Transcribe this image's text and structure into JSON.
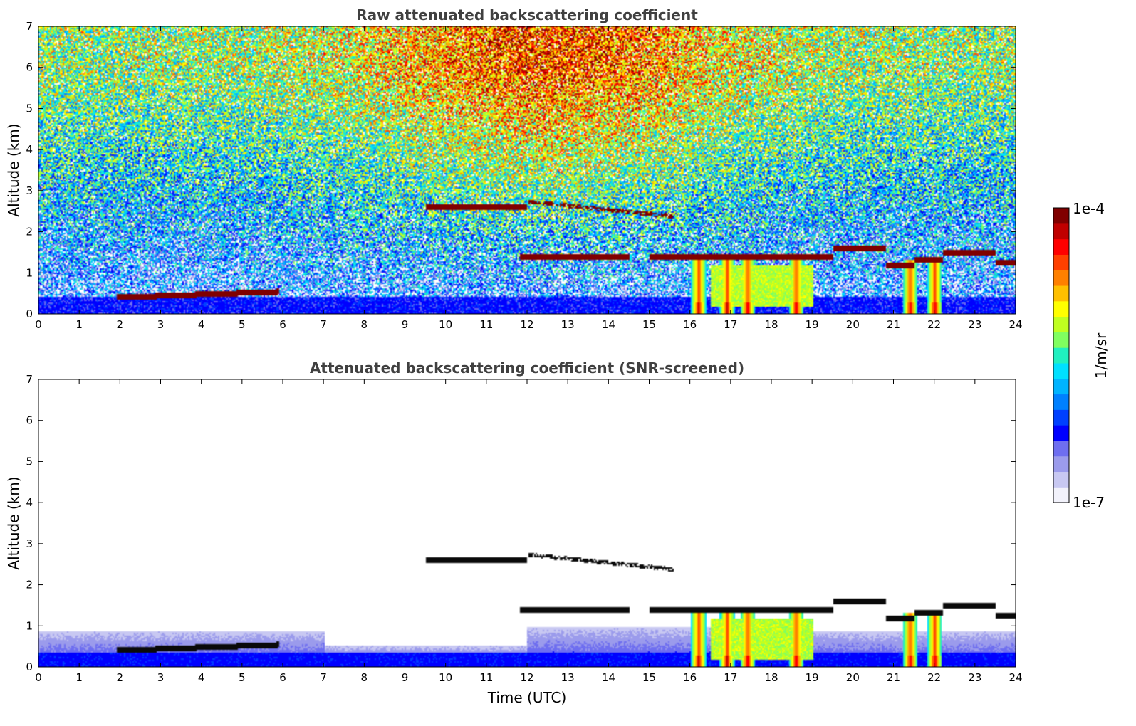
{
  "chart_data": [
    {
      "type": "heatmap",
      "title": "Raw attenuated backscattering coefficient",
      "xlabel": "",
      "ylabel": "Altitude (km)",
      "xlim": [
        0,
        24
      ],
      "ylim": [
        0,
        7
      ],
      "xticks": [
        "0",
        "1",
        "2",
        "3",
        "4",
        "5",
        "6",
        "7",
        "8",
        "9",
        "10",
        "11",
        "12",
        "13",
        "14",
        "15",
        "16",
        "17",
        "18",
        "19",
        "20",
        "21",
        "22",
        "23",
        "24"
      ],
      "yticks": [
        "0",
        "1",
        "2",
        "3",
        "4",
        "5",
        "6",
        "7"
      ],
      "features": {
        "surface_layer_top_km": 0.45,
        "low_cloud": {
          "x": [
            1.9,
            5.9
          ],
          "alt_km": [
            0.35,
            0.6
          ]
        },
        "mid_cloud": {
          "x": [
            9.5,
            15.5
          ],
          "alt_km": [
            2.4,
            2.7
          ]
        },
        "upper_pbl_cloud": {
          "x": [
            11.8,
            24
          ],
          "alt_km": [
            1.1,
            1.6
          ]
        },
        "precipitation_shafts_x": [
          16.2,
          16.9,
          17.4,
          18.6,
          21.4,
          22.0
        ]
      }
    },
    {
      "type": "heatmap",
      "title": "Attenuated backscattering coefficient (SNR-screened)",
      "xlabel": "Time (UTC)",
      "ylabel": "Altitude (km)",
      "xlim": [
        0,
        24
      ],
      "ylim": [
        0,
        7
      ],
      "xticks": [
        "0",
        "1",
        "2",
        "3",
        "4",
        "5",
        "6",
        "7",
        "8",
        "9",
        "10",
        "11",
        "12",
        "13",
        "14",
        "15",
        "16",
        "17",
        "18",
        "19",
        "20",
        "21",
        "22",
        "23",
        "24"
      ],
      "yticks": [
        "0",
        "1",
        "2",
        "3",
        "4",
        "5",
        "6",
        "7"
      ]
    }
  ],
  "colorbar": {
    "label": "1/m/sr",
    "max_label": "1e-4",
    "min_label": "1e-7",
    "scale": "log",
    "range": [
      1e-07,
      0.0001
    ],
    "colors": [
      "#f2f2fb",
      "#c8c8f2",
      "#9b9bec",
      "#6e6ef0",
      "#0000ff",
      "#0040ff",
      "#0080ff",
      "#00b4ff",
      "#00e0ff",
      "#20f0c0",
      "#80ff60",
      "#c0ff20",
      "#ffff00",
      "#ffc000",
      "#ff8000",
      "#ff4000",
      "#ff0000",
      "#c00000",
      "#800000"
    ]
  }
}
